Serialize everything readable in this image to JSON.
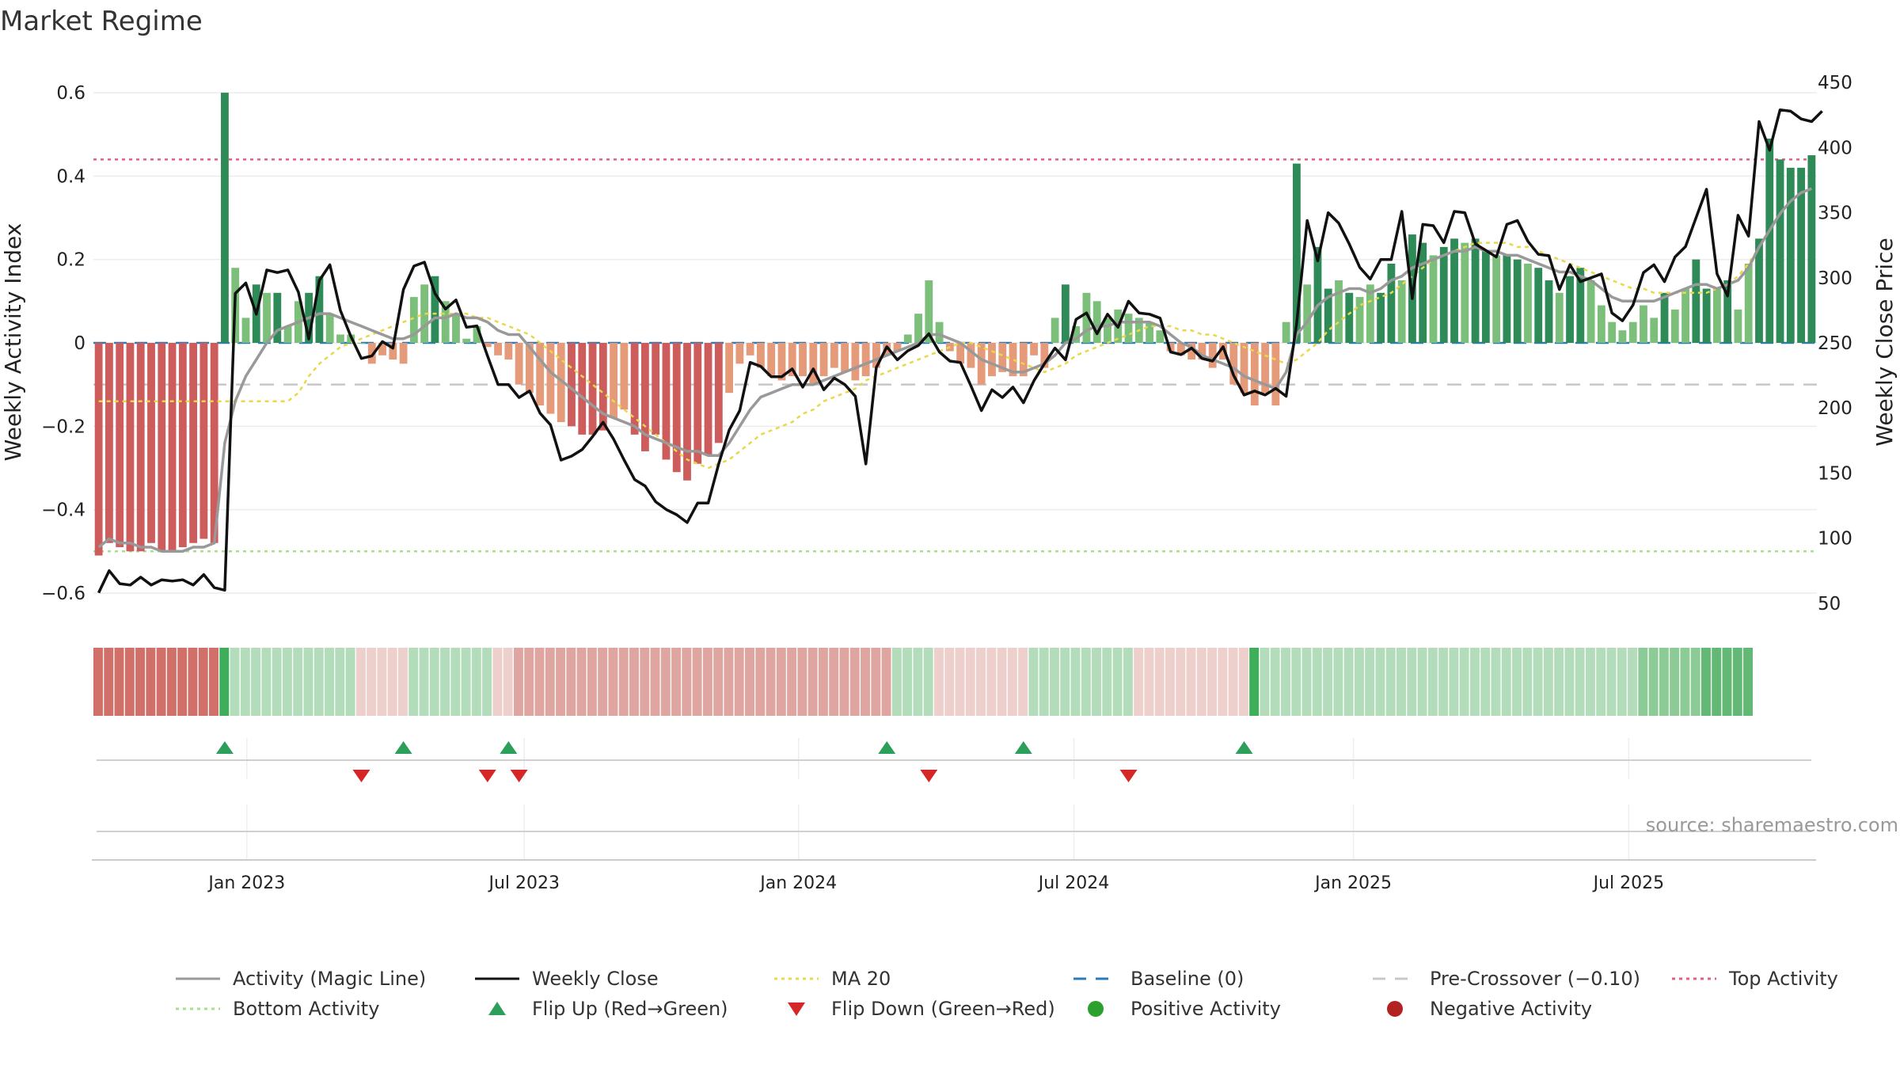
{
  "title": "Market Regime",
  "source": "source: sharemaestro.com",
  "colors": {
    "strong_green": "#2e8b57",
    "light_green": "#7cbf7a",
    "strong_red": "#cd5c5c",
    "light_red": "#e59a7a",
    "magic": "#999999",
    "close": "#111111",
    "ma20": "#e8d84a",
    "baseline": "#2b7bb9",
    "precross": "#c8c8c8",
    "top": "#e06080",
    "bottom": "#a8e08a",
    "flip_up": "#2ca05a",
    "flip_down": "#d62728",
    "pos_dot": "#2ca02c",
    "neg_dot": "#b22222"
  },
  "chart_data": {
    "type": "bar",
    "title": "Market Regime",
    "y_left_label": "Weekly Activity Index",
    "y_right_label": "Weekly Close Price",
    "y_left_ticks": [
      "0.6",
      "0.4",
      "0.2",
      "0",
      "−0.2",
      "−0.4",
      "−0.6"
    ],
    "y_right_ticks": [
      "450",
      "400",
      "350",
      "300",
      "250",
      "200",
      "150",
      "100",
      "50"
    ],
    "y_left_range": [
      -0.64,
      0.64
    ],
    "y_right_range": [
      45,
      455
    ],
    "x_ticks": [
      "Jan 2023",
      "Jul 2023",
      "Jan 2024",
      "Jul 2024",
      "Jan 2025",
      "Jul 2025"
    ],
    "x_tick_weeks": [
      14.6,
      41.0,
      67.1,
      93.3,
      119.9,
      146.1
    ],
    "top_activity": 0.44,
    "bottom_activity": -0.5,
    "pre_crossover": -0.1,
    "baseline": 0,
    "activity": [
      -0.51,
      -0.48,
      -0.49,
      -0.5,
      -0.5,
      -0.48,
      -0.5,
      -0.5,
      -0.49,
      -0.48,
      -0.47,
      -0.48,
      0.6,
      0.18,
      0.06,
      0.14,
      0.12,
      0.12,
      0.04,
      0.1,
      0.12,
      0.16,
      0.07,
      0.02,
      0.02,
      0.0,
      -0.05,
      -0.03,
      -0.04,
      -0.05,
      0.11,
      0.14,
      0.16,
      0.1,
      0.07,
      0.01,
      0.04,
      -0.01,
      -0.03,
      -0.04,
      -0.1,
      -0.12,
      -0.15,
      -0.17,
      -0.19,
      -0.2,
      -0.22,
      -0.22,
      -0.21,
      -0.18,
      -0.16,
      -0.22,
      -0.26,
      -0.22,
      -0.28,
      -0.31,
      -0.33,
      -0.29,
      -0.27,
      -0.24,
      -0.12,
      -0.05,
      -0.03,
      -0.06,
      -0.08,
      -0.09,
      -0.08,
      -0.08,
      -0.1,
      -0.08,
      -0.06,
      -0.07,
      -0.09,
      -0.08,
      -0.06,
      -0.03,
      -0.02,
      0.02,
      0.07,
      0.15,
      0.05,
      -0.02,
      -0.05,
      -0.06,
      -0.1,
      -0.08,
      -0.07,
      -0.08,
      -0.08,
      -0.03,
      -0.06,
      0.06,
      0.14,
      0.04,
      0.12,
      0.1,
      0.06,
      0.08,
      0.07,
      0.06,
      0.05,
      0.03,
      -0.02,
      -0.03,
      -0.04,
      -0.04,
      -0.06,
      -0.04,
      -0.1,
      -0.12,
      -0.15,
      -0.12,
      -0.15,
      0.05,
      0.43,
      0.14,
      0.23,
      0.13,
      0.15,
      0.12,
      0.11,
      0.14,
      0.12,
      0.19,
      0.15,
      0.26,
      0.24,
      0.21,
      0.23,
      0.25,
      0.24,
      0.25,
      0.22,
      0.21,
      0.21,
      0.2,
      0.19,
      0.18,
      0.15,
      0.12,
      0.16,
      0.18,
      0.15,
      0.09,
      0.05,
      0.03,
      0.05,
      0.09,
      0.06,
      0.12,
      0.08,
      0.13,
      0.2,
      0.13,
      0.13,
      0.15,
      0.08,
      0.19,
      0.25,
      0.49,
      0.44,
      0.42,
      0.42,
      0.45
    ],
    "magic_line": [
      -0.49,
      -0.47,
      -0.48,
      -0.48,
      -0.49,
      -0.49,
      -0.5,
      -0.5,
      -0.5,
      -0.49,
      -0.49,
      -0.48,
      -0.24,
      -0.14,
      -0.08,
      -0.04,
      0.0,
      0.03,
      0.04,
      0.05,
      0.06,
      0.07,
      0.07,
      0.06,
      0.05,
      0.04,
      0.03,
      0.02,
      0.01,
      0.01,
      0.02,
      0.04,
      0.06,
      0.06,
      0.07,
      0.06,
      0.06,
      0.05,
      0.03,
      0.02,
      0.02,
      -0.01,
      -0.04,
      -0.07,
      -0.09,
      -0.11,
      -0.13,
      -0.15,
      -0.17,
      -0.18,
      -0.19,
      -0.2,
      -0.22,
      -0.23,
      -0.24,
      -0.25,
      -0.26,
      -0.26,
      -0.27,
      -0.27,
      -0.24,
      -0.2,
      -0.16,
      -0.13,
      -0.12,
      -0.11,
      -0.1,
      -0.1,
      -0.1,
      -0.09,
      -0.08,
      -0.07,
      -0.06,
      -0.05,
      -0.04,
      -0.03,
      -0.02,
      -0.01,
      0.0,
      0.02,
      0.02,
      0.01,
      0.0,
      -0.02,
      -0.04,
      -0.05,
      -0.06,
      -0.07,
      -0.07,
      -0.06,
      -0.05,
      -0.03,
      0.0,
      0.01,
      0.03,
      0.04,
      0.04,
      0.05,
      0.05,
      0.05,
      0.05,
      0.04,
      0.02,
      0.0,
      -0.01,
      -0.03,
      -0.04,
      -0.05,
      -0.06,
      -0.08,
      -0.09,
      -0.1,
      -0.11,
      -0.07,
      0.02,
      0.05,
      0.09,
      0.11,
      0.12,
      0.13,
      0.13,
      0.12,
      0.13,
      0.15,
      0.16,
      0.18,
      0.19,
      0.2,
      0.21,
      0.22,
      0.22,
      0.23,
      0.22,
      0.22,
      0.21,
      0.21,
      0.2,
      0.19,
      0.18,
      0.17,
      0.17,
      0.16,
      0.15,
      0.13,
      0.11,
      0.1,
      0.1,
      0.1,
      0.1,
      0.11,
      0.12,
      0.13,
      0.14,
      0.14,
      0.13,
      0.14,
      0.15,
      0.18,
      0.23,
      0.27,
      0.31,
      0.34,
      0.36,
      0.37
    ],
    "ma20": [
      -0.14,
      -0.14,
      -0.14,
      -0.14,
      -0.14,
      -0.14,
      -0.14,
      -0.14,
      -0.14,
      -0.14,
      -0.14,
      -0.14,
      -0.14,
      -0.14,
      -0.14,
      -0.14,
      -0.14,
      -0.14,
      -0.14,
      -0.12,
      -0.08,
      -0.05,
      -0.03,
      -0.01,
      0.0,
      0.01,
      0.02,
      0.03,
      0.04,
      0.05,
      0.06,
      0.07,
      0.07,
      0.07,
      0.07,
      0.07,
      0.06,
      0.06,
      0.05,
      0.04,
      0.03,
      0.02,
      0.0,
      -0.02,
      -0.04,
      -0.06,
      -0.08,
      -0.1,
      -0.12,
      -0.14,
      -0.16,
      -0.18,
      -0.2,
      -0.22,
      -0.24,
      -0.26,
      -0.28,
      -0.29,
      -0.3,
      -0.29,
      -0.28,
      -0.26,
      -0.24,
      -0.22,
      -0.21,
      -0.2,
      -0.19,
      -0.17,
      -0.16,
      -0.14,
      -0.13,
      -0.12,
      -0.11,
      -0.09,
      -0.08,
      -0.07,
      -0.06,
      -0.05,
      -0.04,
      -0.03,
      -0.02,
      -0.01,
      0.0,
      0.0,
      -0.01,
      -0.02,
      -0.03,
      -0.04,
      -0.05,
      -0.06,
      -0.07,
      -0.06,
      -0.05,
      -0.03,
      -0.02,
      -0.01,
      0.0,
      0.01,
      0.02,
      0.03,
      0.04,
      0.04,
      0.04,
      0.03,
      0.03,
      0.02,
      0.02,
      0.01,
      0.0,
      -0.01,
      -0.02,
      -0.03,
      -0.04,
      -0.05,
      -0.04,
      -0.02,
      0.0,
      0.03,
      0.05,
      0.07,
      0.09,
      0.1,
      0.11,
      0.12,
      0.14,
      0.16,
      0.18,
      0.2,
      0.21,
      0.22,
      0.23,
      0.24,
      0.24,
      0.24,
      0.24,
      0.23,
      0.23,
      0.22,
      0.21,
      0.2,
      0.19,
      0.18,
      0.17,
      0.16,
      0.15,
      0.14,
      0.13,
      0.13,
      0.12,
      0.12,
      0.12,
      0.12,
      0.12,
      0.12,
      0.13,
      0.14,
      0.16,
      0.19,
      0.23,
      0.27,
      0.31,
      0.34
    ],
    "weekly_close": [
      58,
      75,
      65,
      64,
      70,
      64,
      68,
      67,
      68,
      64,
      72,
      62,
      60,
      288,
      296,
      272,
      306,
      304,
      306,
      289,
      253,
      298,
      310,
      275,
      255,
      238,
      240,
      251,
      246,
      291,
      309,
      312,
      288,
      276,
      283,
      262,
      263,
      240,
      218,
      218,
      208,
      213,
      196,
      187,
      160,
      163,
      168,
      178,
      189,
      176,
      160,
      145,
      140,
      128,
      122,
      118,
      112,
      127,
      127,
      157,
      183,
      198,
      235,
      232,
      224,
      224,
      230,
      216,
      230,
      214,
      223,
      218,
      209,
      157,
      231,
      247,
      237,
      244,
      248,
      257,
      243,
      236,
      235,
      217,
      198,
      214,
      208,
      216,
      204,
      221,
      234,
      246,
      237,
      268,
      273,
      257,
      272,
      262,
      282,
      273,
      272,
      269,
      243,
      241,
      246,
      238,
      236,
      247,
      225,
      210,
      213,
      210,
      215,
      209,
      265,
      344,
      313,
      350,
      342,
      326,
      308,
      299,
      314,
      314,
      351,
      284,
      341,
      340,
      327,
      351,
      350,
      326,
      321,
      316,
      341,
      344,
      328,
      318,
      317,
      291,
      310,
      297,
      300,
      303,
      273,
      267,
      279,
      304,
      310,
      297,
      316,
      324,
      346,
      368,
      303,
      286,
      348,
      332,
      420,
      398,
      429,
      428,
      422,
      420,
      428
    ]
  },
  "regime_strip": [
    {
      "from": 0,
      "to": 11,
      "tone": "neg-strong"
    },
    {
      "from": 12,
      "to": 12,
      "tone": "pos-peak"
    },
    {
      "from": 13,
      "to": 24,
      "tone": "pos-light"
    },
    {
      "from": 25,
      "to": 29,
      "tone": "neg-pale"
    },
    {
      "from": 30,
      "to": 37,
      "tone": "pos-light"
    },
    {
      "from": 38,
      "to": 39,
      "tone": "neg-pale"
    },
    {
      "from": 40,
      "to": 75,
      "tone": "neg-mid"
    },
    {
      "from": 76,
      "to": 79,
      "tone": "pos-light"
    },
    {
      "from": 80,
      "to": 88,
      "tone": "neg-pale"
    },
    {
      "from": 89,
      "to": 98,
      "tone": "pos-light"
    },
    {
      "from": 99,
      "to": 109,
      "tone": "neg-pale"
    },
    {
      "from": 110,
      "to": 110,
      "tone": "pos-peak"
    },
    {
      "from": 111,
      "to": 146,
      "tone": "pos-light"
    },
    {
      "from": 147,
      "to": 152,
      "tone": "pos-mid"
    },
    {
      "from": 153,
      "to": 157,
      "tone": "pos-strong"
    }
  ],
  "flips_up": [
    12,
    29,
    39,
    75,
    88,
    109
  ],
  "flips_down": [
    25,
    37,
    40,
    79,
    98
  ],
  "legend": [
    {
      "key": "magic",
      "label": "Activity (Magic Line)",
      "kind": "line-solid-gray"
    },
    {
      "key": "close",
      "label": "Weekly Close",
      "kind": "line-solid-black"
    },
    {
      "key": "ma20",
      "label": "MA 20",
      "kind": "line-dotted-yellow"
    },
    {
      "key": "baseline",
      "label": "Baseline (0)",
      "kind": "line-dashed-blue"
    },
    {
      "key": "precross",
      "label": "Pre-Crossover (−0.10)",
      "kind": "line-dashed-gray"
    },
    {
      "key": "top",
      "label": "Top Activity",
      "kind": "line-dotted-red"
    },
    {
      "key": "bottom",
      "label": "Bottom Activity",
      "kind": "line-dotted-green"
    },
    {
      "key": "flip_up",
      "label": "Flip Up (Red→Green)",
      "kind": "triangle-up"
    },
    {
      "key": "flip_down",
      "label": "Flip Down (Green→Red)",
      "kind": "triangle-down"
    },
    {
      "key": "pos_dot",
      "label": "Positive Activity",
      "kind": "dot-green"
    },
    {
      "key": "neg_dot",
      "label": "Negative Activity",
      "kind": "dot-red"
    }
  ]
}
